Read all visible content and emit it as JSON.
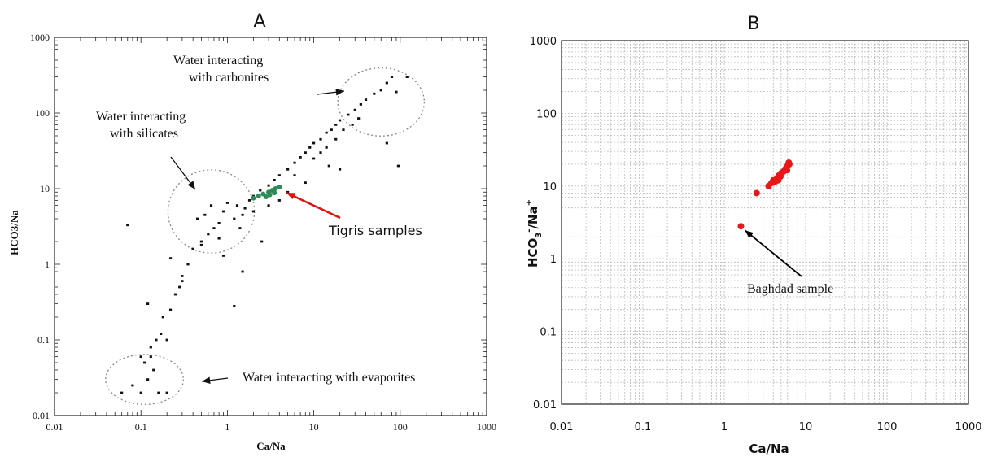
{
  "chart_data": [
    {
      "type": "scatter",
      "panel_label": "A",
      "xlabel": "Ca/Na",
      "ylabel": "HCO3/Na",
      "xscale": "log",
      "yscale": "log",
      "xlim": [
        0.01,
        1000
      ],
      "ylim": [
        0.01,
        1000
      ],
      "xticks": [
        "0.01",
        "0.1",
        "1",
        "10",
        "100",
        "1000"
      ],
      "yticks": [
        "0.01",
        "0.1",
        "1",
        "10",
        "100",
        "1000"
      ],
      "grid": false,
      "colors": {
        "points": "#111111",
        "tigris": "#2e8b57",
        "arrow": "#e01010",
        "ellipse": "#888888"
      },
      "annotations": [
        {
          "text": "Water interacting",
          "text2": "with carbonites",
          "target": [
            60,
            150
          ]
        },
        {
          "text": "Water interacting",
          "text2": "with silicates",
          "target": [
            0.7,
            5
          ]
        },
        {
          "text": "Water interacting  with evaporites",
          "target": [
            0.1,
            0.03
          ]
        },
        {
          "text": "Tigris samples",
          "target": [
            3,
            8.5
          ],
          "color": "#e01010"
        }
      ],
      "ellipses": [
        {
          "name": "carbonates",
          "center": [
            60,
            140
          ],
          "rx_decades": 0.5,
          "ry_decades": 0.45
        },
        {
          "name": "silicates",
          "center": [
            0.65,
            5
          ],
          "rx_decades": 0.5,
          "ry_decades": 0.55
        },
        {
          "name": "evaporites",
          "center": [
            0.11,
            0.03
          ],
          "rx_decades": 0.45,
          "ry_decades": 0.33
        }
      ],
      "series": [
        {
          "role": "cloud",
          "points": [
            [
              0.07,
              3.3
            ],
            [
              0.12,
              0.3
            ],
            [
              0.1,
              0.06
            ],
            [
              0.13,
              0.08
            ],
            [
              0.15,
              0.1
            ],
            [
              0.17,
              0.12
            ],
            [
              0.2,
              0.1
            ],
            [
              0.18,
              0.2
            ],
            [
              0.22,
              0.25
            ],
            [
              0.25,
              0.4
            ],
            [
              0.28,
              0.5
            ],
            [
              0.3,
              0.7
            ],
            [
              0.22,
              1.2
            ],
            [
              0.35,
              1.0
            ],
            [
              0.4,
              1.6
            ],
            [
              0.5,
              2.0
            ],
            [
              0.6,
              2.5
            ],
            [
              0.7,
              3.0
            ],
            [
              0.8,
              3.5
            ],
            [
              0.45,
              4.0
            ],
            [
              0.55,
              4.5
            ],
            [
              0.65,
              6.0
            ],
            [
              0.9,
              5.0
            ],
            [
              1.0,
              6.5
            ],
            [
              1.2,
              4.0
            ],
            [
              1.4,
              3.0
            ],
            [
              1.6,
              5.5
            ],
            [
              1.8,
              7.0
            ],
            [
              2.0,
              8.0
            ],
            [
              2.4,
              9.5
            ],
            [
              3.0,
              11
            ],
            [
              3.5,
              13
            ],
            [
              4.0,
              15
            ],
            [
              5.0,
              18
            ],
            [
              6.0,
              22
            ],
            [
              7.0,
              26
            ],
            [
              8.0,
              30
            ],
            [
              9.0,
              35
            ],
            [
              10,
              40
            ],
            [
              12,
              45
            ],
            [
              14,
              55
            ],
            [
              16,
              60
            ],
            [
              18,
              70
            ],
            [
              20,
              80
            ],
            [
              25,
              95
            ],
            [
              30,
              110
            ],
            [
              35,
              130
            ],
            [
              40,
              150
            ],
            [
              50,
              180
            ],
            [
              60,
              200
            ],
            [
              70,
              250
            ],
            [
              80,
              300
            ],
            [
              90,
              190
            ],
            [
              120,
              300
            ],
            [
              95,
              20
            ],
            [
              70,
              40
            ],
            [
              15,
              20
            ],
            [
              20,
              18
            ],
            [
              2.5,
              2.0
            ],
            [
              1.5,
              0.8
            ],
            [
              1.2,
              0.28
            ],
            [
              0.9,
              1.3
            ],
            [
              0.3,
              0.6
            ],
            [
              0.5,
              1.8
            ],
            [
              0.8,
              2.2
            ],
            [
              6,
              15
            ],
            [
              10,
              25
            ],
            [
              12,
              30
            ],
            [
              14,
              35
            ],
            [
              18,
              45
            ],
            [
              22,
              60
            ],
            [
              28,
              70
            ],
            [
              33,
              85
            ],
            [
              8,
              12
            ],
            [
              5,
              9
            ],
            [
              4,
              7
            ],
            [
              3,
              6
            ],
            [
              2,
              5
            ],
            [
              1.5,
              4.5
            ],
            [
              1.3,
              6
            ],
            [
              0.12,
              0.03
            ],
            [
              0.14,
              0.04
            ],
            [
              0.08,
              0.025
            ],
            [
              0.06,
              0.02
            ],
            [
              0.16,
              0.02
            ],
            [
              0.2,
              0.02
            ],
            [
              0.1,
              0.02
            ],
            [
              0.11,
              0.05
            ],
            [
              0.13,
              0.06
            ]
          ]
        },
        {
          "role": "tigris",
          "points": [
            [
              2.0,
              7.5
            ],
            [
              2.3,
              8.0
            ],
            [
              2.6,
              8.5
            ],
            [
              3.0,
              9.0
            ],
            [
              3.3,
              9.5
            ],
            [
              3.6,
              10
            ],
            [
              4.0,
              10.5
            ],
            [
              2.8,
              7.8
            ],
            [
              3.1,
              8.3
            ],
            [
              3.5,
              8.8
            ]
          ]
        }
      ]
    },
    {
      "type": "scatter",
      "panel_label": "B",
      "xlabel": "Ca/Na",
      "ylabel_main": "HCO",
      "ylabel_sub": "3",
      "ylabel_sup1": "-",
      "ylabel_mid": "/Na",
      "ylabel_sup2": "+",
      "xscale": "log",
      "yscale": "log",
      "xlim": [
        0.01,
        1000
      ],
      "ylim": [
        0.01,
        1000
      ],
      "xticks": [
        "0.01",
        "0.1",
        "1",
        "10",
        "100",
        "1000"
      ],
      "yticks": [
        "0.01",
        "0.1",
        "1",
        "10",
        "100",
        "1000"
      ],
      "grid": true,
      "colors": {
        "points": "#e81818",
        "grid": "#b8b8b8",
        "arrow": "#000000"
      },
      "annotations": [
        {
          "text": "Baghdad sample",
          "target": [
            1.6,
            2.8
          ]
        }
      ],
      "series": [
        {
          "role": "samples",
          "points": [
            [
              1.6,
              2.8
            ],
            [
              2.5,
              8.0
            ],
            [
              3.5,
              10
            ],
            [
              3.8,
              11
            ],
            [
              4.0,
              12
            ],
            [
              4.2,
              11.5
            ],
            [
              4.4,
              12.5
            ],
            [
              4.5,
              13
            ],
            [
              4.7,
              14
            ],
            [
              4.9,
              13.5
            ],
            [
              5.0,
              15
            ],
            [
              5.2,
              15.5
            ],
            [
              5.4,
              16
            ],
            [
              5.6,
              17
            ],
            [
              5.8,
              18
            ],
            [
              6.0,
              19
            ],
            [
              6.2,
              21
            ],
            [
              6.3,
              20
            ],
            [
              5.9,
              16.5
            ],
            [
              4.6,
              12
            ]
          ]
        }
      ]
    }
  ]
}
